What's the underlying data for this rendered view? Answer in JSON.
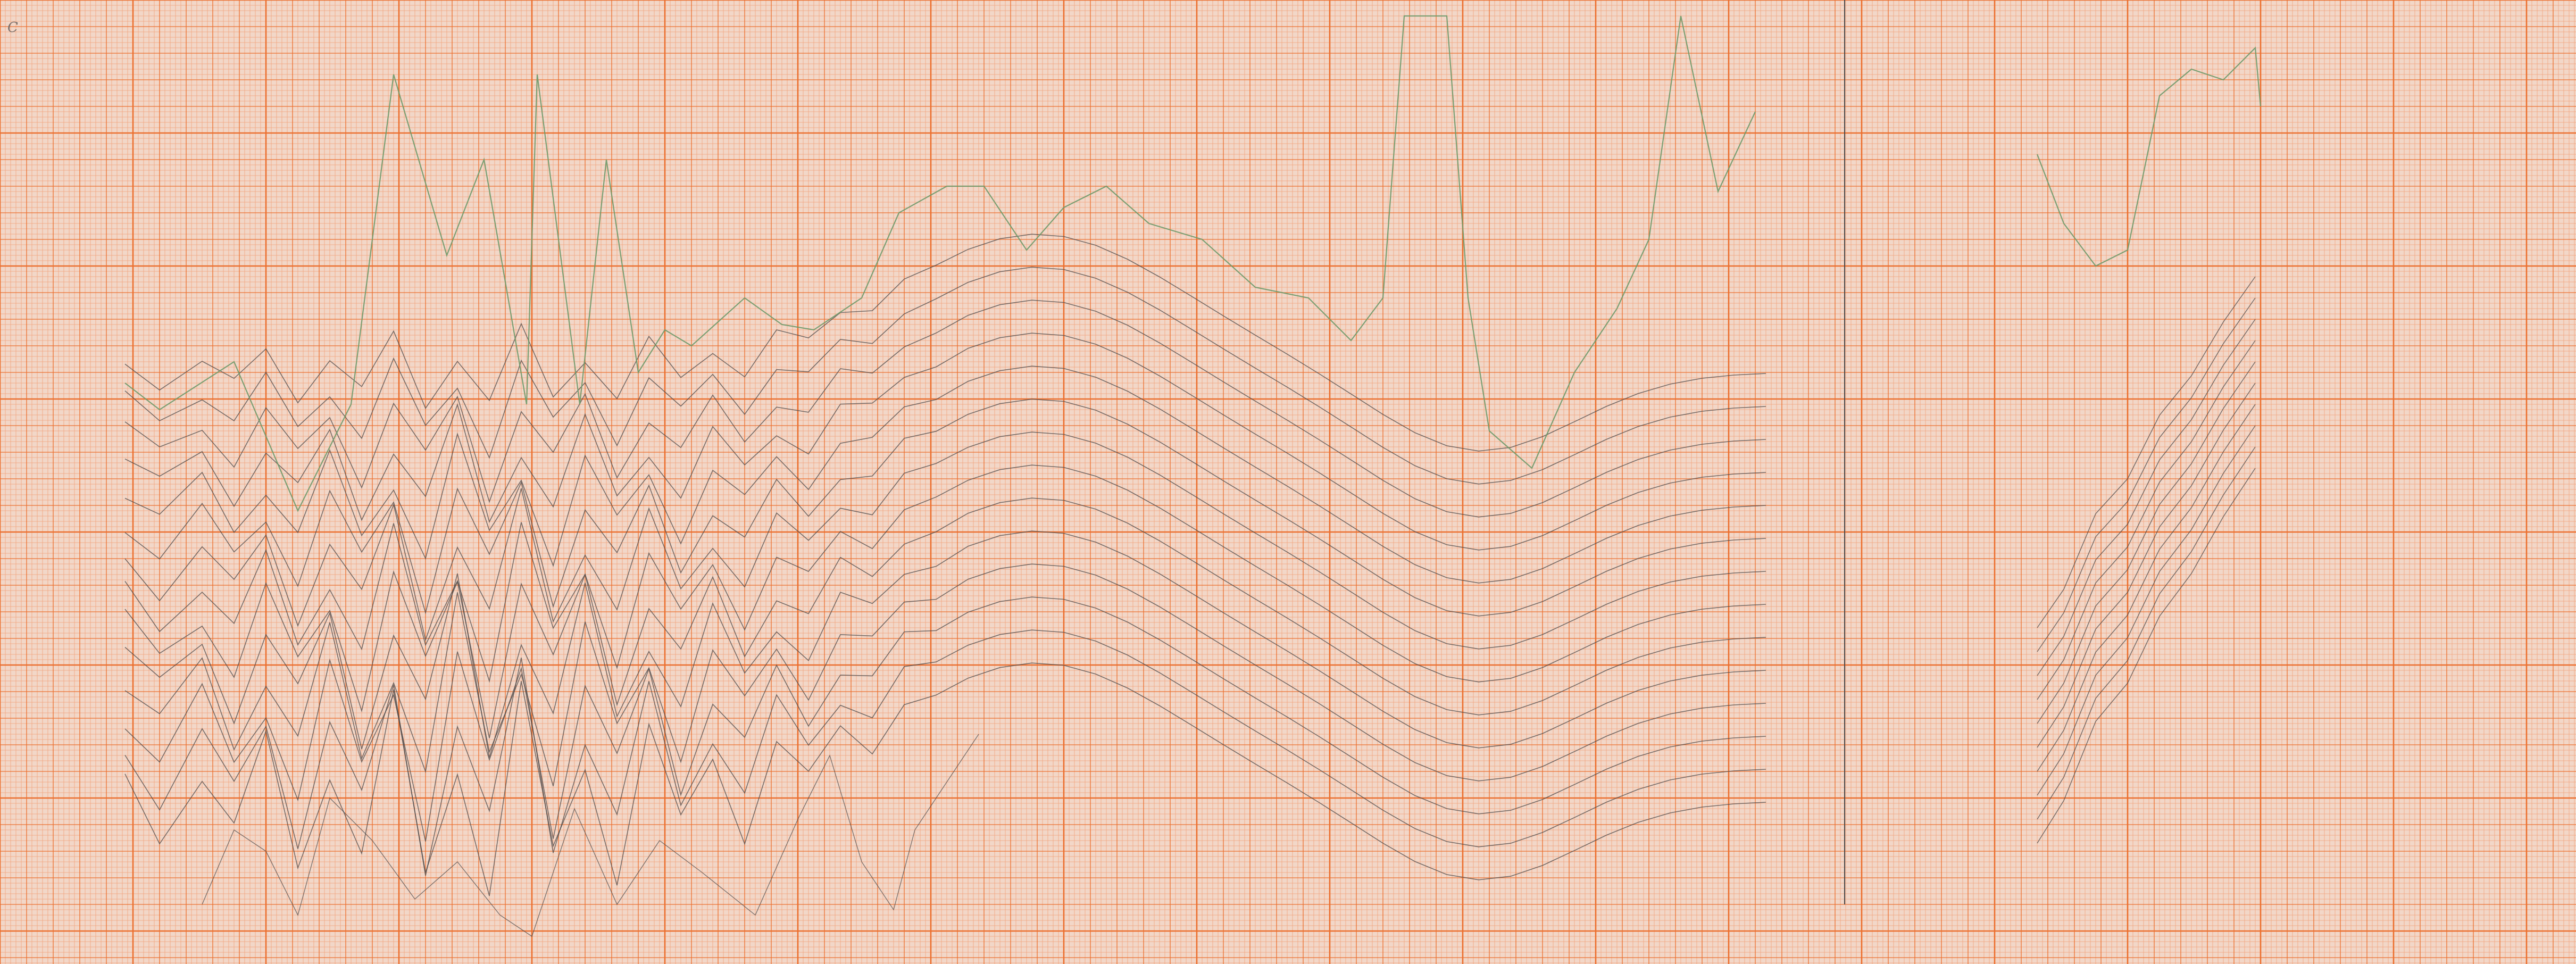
{
  "sheet": {
    "paper_color": "#f2d7c8",
    "grid_minor_color": "#f1a17a",
    "grid_major_color": "#ec6f2e",
    "pencil_color": "#4d4a4a",
    "green_pencil_color": "#6f9a6a"
  },
  "left_axis_labels": [
    "C",
    "",
    "",
    "",
    "",
    "",
    "",
    "",
    "",
    "",
    "",
    "",
    "",
    "",
    ""
  ],
  "bottom_axis_labels": [
    "",
    "",
    "",
    "",
    "",
    "",
    "",
    "",
    "",
    "",
    "",
    "",
    "",
    "",
    "",
    "",
    "",
    "",
    "",
    "",
    "",
    "",
    "",
    "",
    "",
    "",
    "",
    "",
    "",
    "",
    ""
  ],
  "pencil_traces": {
    "trace_count_main": 14,
    "trace_count_right": 10
  }
}
